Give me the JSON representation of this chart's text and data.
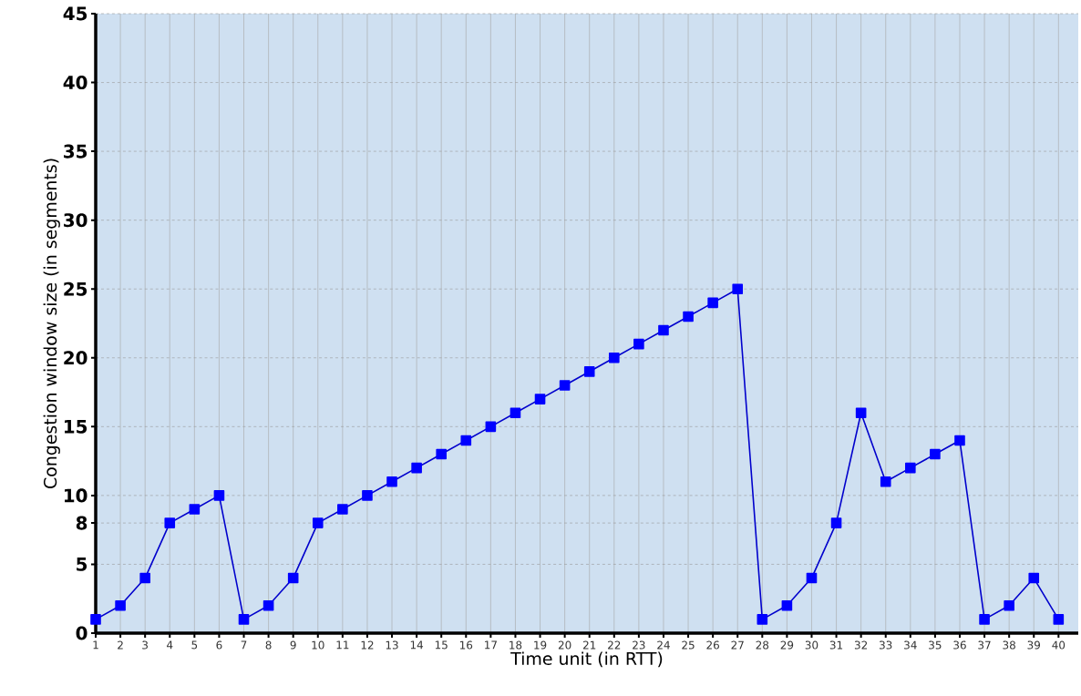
{
  "chart_data": {
    "type": "line",
    "xlabel": "Time unit (in RTT)",
    "ylabel": "Congestion window size (in segments)",
    "x": [
      1,
      2,
      3,
      4,
      5,
      6,
      7,
      8,
      9,
      10,
      11,
      12,
      13,
      14,
      15,
      16,
      17,
      18,
      19,
      20,
      21,
      22,
      23,
      24,
      25,
      26,
      27,
      28,
      29,
      30,
      31,
      32,
      33,
      34,
      35,
      36,
      37,
      38,
      39,
      40
    ],
    "values": [
      1,
      2,
      4,
      8,
      9,
      10,
      1,
      2,
      4,
      8,
      9,
      10,
      11,
      12,
      13,
      14,
      15,
      16,
      17,
      18,
      19,
      20,
      21,
      22,
      23,
      24,
      25,
      1,
      2,
      4,
      8,
      16,
      11,
      12,
      13,
      14,
      1,
      2,
      4,
      1
    ],
    "color": "#0000cc",
    "marker": "square",
    "line_style": "solid",
    "xlim": [
      1,
      40.8
    ],
    "ylim": [
      0,
      45
    ],
    "xticks": [
      1,
      2,
      3,
      4,
      5,
      6,
      7,
      8,
      9,
      10,
      11,
      12,
      13,
      14,
      15,
      16,
      17,
      18,
      19,
      20,
      21,
      22,
      23,
      24,
      25,
      26,
      27,
      28,
      29,
      30,
      31,
      32,
      33,
      34,
      35,
      36,
      37,
      38,
      39,
      40
    ],
    "yticks": [
      0,
      5,
      8,
      10,
      15,
      20,
      25,
      30,
      35,
      40,
      45
    ],
    "grid": true
  }
}
